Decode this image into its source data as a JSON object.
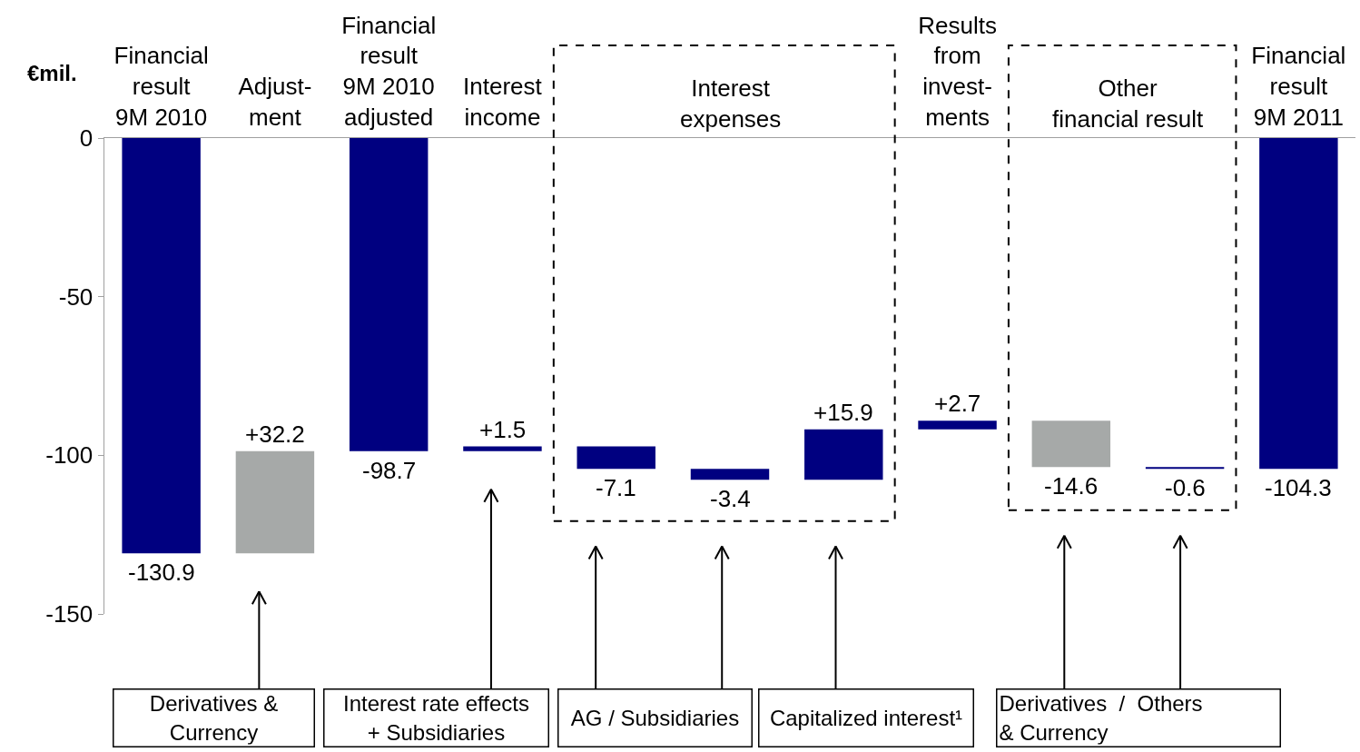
{
  "chart_data": {
    "type": "bar",
    "ylabel": "€mil.",
    "categories": [
      "Financial\nresult\n9M 2010",
      "Adjust-\nment",
      "Financial\nresult\n9M 2010\nadjusted",
      "Interest\nincome",
      null,
      null,
      null,
      "Results\nfrom\ninvest-\nments",
      null,
      null,
      "Financial\nresult\n9M 2011"
    ],
    "base": [
      0,
      -130.9,
      0,
      -98.7,
      -97.2,
      -104.3,
      -107.7,
      -91.8,
      -89.1,
      -103.7,
      0
    ],
    "values": [
      -130.9,
      32.2,
      -98.7,
      1.5,
      -7.1,
      -3.4,
      15.9,
      2.7,
      -14.6,
      -0.6,
      -104.3
    ],
    "colors": [
      "#000080",
      "#a6a9a8",
      "#000080",
      "#000080",
      "#000080",
      "#000080",
      "#000080",
      "#000080",
      "#a6a9a8",
      "#000080",
      "#000080"
    ],
    "value_labels": [
      "-130.9",
      "+32.2",
      "-98.7",
      "+1.5",
      "-7.1",
      "-3.4",
      "+15.9",
      "+2.7",
      "-14.6",
      "-0.6",
      "-104.3"
    ],
    "ylim": [
      -150,
      0
    ],
    "yticks": [
      0,
      -50,
      -100,
      -150
    ],
    "annotations": [
      "Interest\nexpenses",
      "Other\nfinancial result",
      "Derivatives &\nCurrency",
      "Interest rate effects\n+ Subsidiaries",
      "AG / Subsidiaries",
      "Capitalized interest¹",
      "Derivatives  /  Others\n& Currency"
    ]
  }
}
